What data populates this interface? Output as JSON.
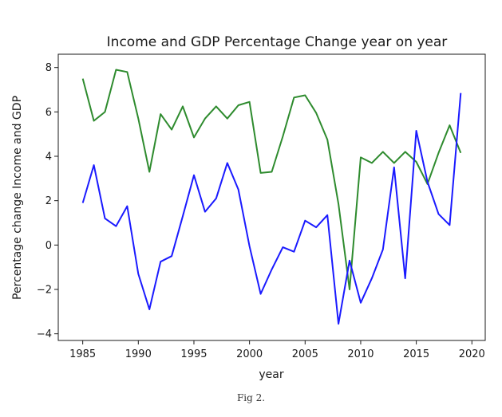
{
  "chart_data": {
    "type": "line",
    "title": "Income and GDP Percentage Change year on year",
    "xlabel": "year",
    "ylabel": "Percentage change Income and GDP",
    "xlim": [
      1982.8,
      2021.2
    ],
    "ylim": [
      -4.3,
      8.6
    ],
    "xticks": [
      1985,
      1990,
      1995,
      2000,
      2005,
      2010,
      2015,
      2020
    ],
    "yticks": [
      -4,
      -2,
      0,
      2,
      4,
      6,
      8
    ],
    "grid": false,
    "legend": "none",
    "x": [
      1985,
      1986,
      1987,
      1988,
      1989,
      1990,
      1991,
      1992,
      1993,
      1994,
      1995,
      1996,
      1997,
      1998,
      1999,
      2000,
      2001,
      2002,
      2003,
      2004,
      2005,
      2006,
      2007,
      2008,
      2009,
      2010,
      2011,
      2012,
      2013,
      2014,
      2015,
      2016,
      2017,
      2018,
      2019
    ],
    "series": [
      {
        "color": "#2e8b2e",
        "values": [
          7.5,
          5.6,
          6.0,
          7.9,
          7.8,
          5.7,
          3.3,
          5.9,
          5.2,
          6.25,
          4.85,
          5.7,
          6.25,
          5.7,
          6.3,
          6.45,
          3.25,
          3.3,
          4.9,
          6.65,
          6.75,
          5.95,
          4.75,
          1.85,
          -2.0,
          3.95,
          3.7,
          4.2,
          3.7,
          4.2,
          3.75,
          2.75,
          4.15,
          5.4,
          4.15
        ]
      },
      {
        "color": "#1a1aff",
        "values": [
          1.9,
          3.6,
          1.2,
          0.85,
          1.75,
          -1.3,
          -2.9,
          -0.75,
          -0.5,
          1.3,
          3.15,
          1.5,
          2.1,
          3.7,
          2.5,
          -0.05,
          -2.2,
          -1.1,
          -0.1,
          -0.3,
          1.1,
          0.8,
          1.35,
          -3.55,
          -0.7,
          -2.6,
          -1.5,
          -0.2,
          3.5,
          -1.5,
          5.15,
          2.85,
          1.4,
          0.9,
          6.85
        ]
      }
    ]
  },
  "caption": "Fig 2."
}
